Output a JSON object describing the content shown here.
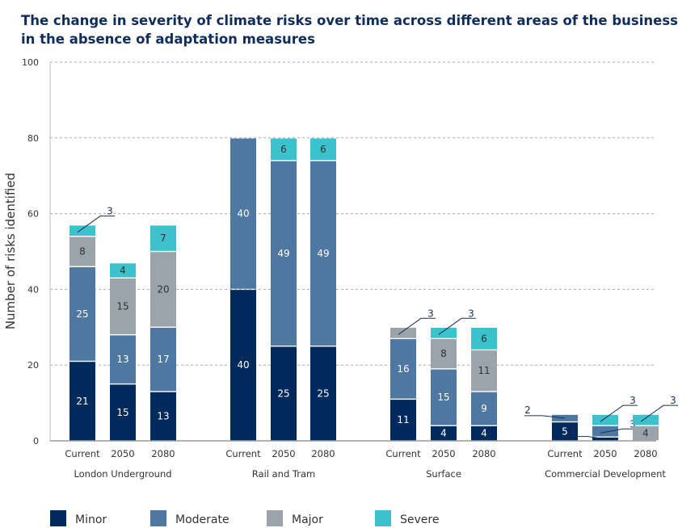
{
  "chart_data": {
    "type": "bar",
    "stacked": true,
    "title": "The change in severity of climate risks over time across different areas of the business in the absence of adaptation measures",
    "ylabel": "Number of risks identified",
    "ylim": [
      0,
      100
    ],
    "yticks": [
      "0",
      "20",
      "40",
      "60",
      "80",
      "100"
    ],
    "grid": true,
    "legend_position": "bottom",
    "series_names": [
      "Minor",
      "Moderate",
      "Major",
      "Severe"
    ],
    "colors": {
      "Minor": "#002a5c",
      "Moderate": "#4e78a2",
      "Major": "#9aa4aa",
      "Severe": "#3cc2cc"
    },
    "groups": [
      {
        "name": "London Underground",
        "categories": [
          "Current",
          "2050",
          "2080"
        ],
        "values": {
          "Minor": [
            21,
            15,
            13
          ],
          "Moderate": [
            25,
            13,
            17
          ],
          "Major": [
            8,
            15,
            20
          ],
          "Severe": [
            3,
            4,
            7
          ]
        }
      },
      {
        "name": "Rail and Tram",
        "categories": [
          "Current",
          "2050",
          "2080"
        ],
        "values": {
          "Minor": [
            40,
            25,
            25
          ],
          "Moderate": [
            40,
            49,
            49
          ],
          "Major": [
            0,
            0,
            0
          ],
          "Severe": [
            0,
            6,
            6
          ]
        }
      },
      {
        "name": "Surface",
        "categories": [
          "Current",
          "2050",
          "2080"
        ],
        "values": {
          "Minor": [
            11,
            4,
            4
          ],
          "Moderate": [
            16,
            15,
            9
          ],
          "Major": [
            3,
            8,
            11
          ],
          "Severe": [
            0,
            3,
            6
          ]
        }
      },
      {
        "name": "Commercial Development",
        "categories": [
          "Current",
          "2050",
          "2080"
        ],
        "values": {
          "Minor": [
            5,
            1,
            0
          ],
          "Moderate": [
            2,
            3,
            0
          ],
          "Major": [
            0,
            0,
            4
          ],
          "Severe": [
            0,
            3,
            3
          ]
        }
      }
    ]
  }
}
